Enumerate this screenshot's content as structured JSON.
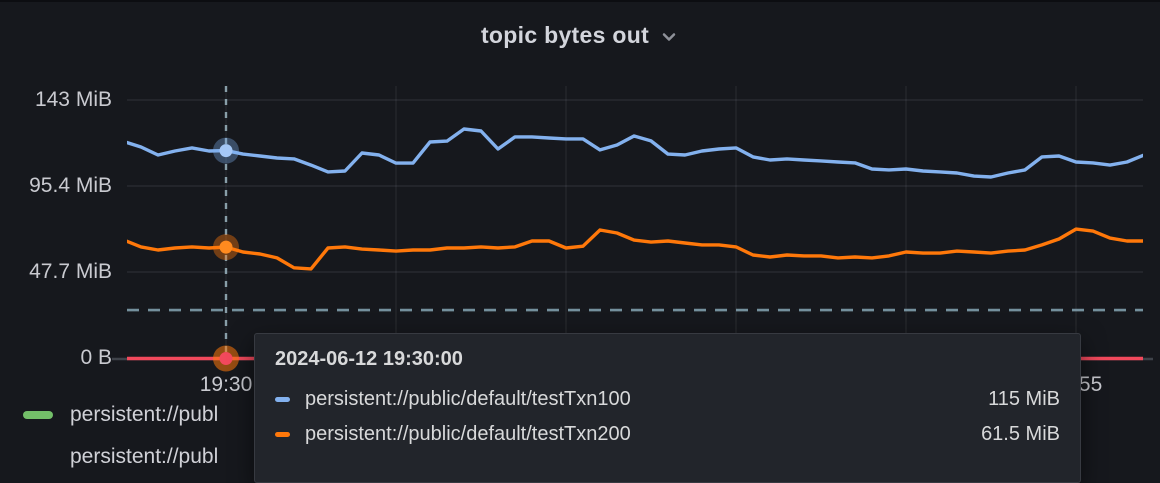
{
  "panel": {
    "title": "topic bytes out"
  },
  "colors": {
    "background": "#16181d",
    "tooltip_background": "#22252b",
    "blue": "#83B1EE",
    "orange": "#FF780A",
    "red": "#F2495C",
    "green": "#73BF69",
    "threshold": "#7F9DAB",
    "crosshair": "#9AB4C0",
    "axis_text": "#C9CAD0"
  },
  "y_axis": {
    "ticks": [
      {
        "label": "0 B",
        "value_mib": 0
      },
      {
        "label": "47.7 MiB",
        "value_mib": 47.68
      },
      {
        "label": "95.4 MiB",
        "value_mib": 95.37
      },
      {
        "label": "143 MiB",
        "value_mib": 143.05
      }
    ]
  },
  "x_axis": {
    "visible_ticks": [
      {
        "label": "19:30",
        "minutes": 0
      },
      {
        "label": "19:55",
        "minutes": 25
      }
    ]
  },
  "chart_data": {
    "type": "line",
    "title": "topic bytes out",
    "unit": "MiB",
    "x_start": "19:27:00",
    "x_step_seconds": 30,
    "x_range": [
      "19:27:00",
      "19:57:00"
    ],
    "ylim_mib": [
      0,
      143.05
    ],
    "grid": true,
    "legend_position": "bottom",
    "series": [
      {
        "name": "persistent://public/default/testTxn100",
        "color": "#83B1EE",
        "values": [
          120.0,
          117.0,
          112.6,
          114.8,
          116.5,
          114.8,
          115.0,
          113.1,
          112.0,
          110.9,
          110.4,
          107.0,
          103.2,
          103.7,
          113.7,
          112.6,
          108.1,
          108.1,
          119.8,
          120.3,
          127.0,
          125.9,
          115.9,
          122.6,
          122.6,
          122.0,
          121.5,
          121.5,
          115.4,
          118.1,
          123.1,
          120.4,
          113.1,
          112.6,
          114.8,
          115.9,
          116.5,
          111.5,
          109.8,
          110.4,
          109.8,
          109.3,
          108.7,
          108.2,
          104.8,
          104.3,
          104.8,
          103.7,
          103.2,
          102.6,
          100.9,
          100.4,
          102.6,
          104.3,
          111.5,
          112.0,
          108.7,
          108.2,
          107.0,
          108.7,
          112.6
        ]
      },
      {
        "name": "persistent://public/default/testTxn200",
        "color": "#FF780A",
        "values": [
          65.4,
          61.6,
          59.9,
          61.0,
          61.6,
          61.0,
          61.5,
          58.8,
          57.7,
          55.5,
          50.0,
          49.4,
          61.0,
          61.6,
          60.4,
          59.9,
          59.3,
          59.9,
          59.9,
          61.0,
          61.0,
          61.6,
          61.0,
          61.6,
          64.9,
          64.9,
          61.0,
          62.0,
          71.0,
          69.3,
          65.4,
          64.3,
          64.9,
          63.8,
          62.7,
          62.7,
          61.6,
          57.1,
          56.0,
          57.1,
          56.6,
          56.6,
          55.5,
          56.0,
          55.5,
          56.6,
          58.8,
          58.2,
          58.2,
          59.3,
          58.8,
          58.2,
          59.3,
          59.9,
          62.7,
          66.0,
          71.5,
          70.4,
          66.5,
          64.9,
          64.9
        ]
      },
      {
        "name": "",
        "color": "#F2495C",
        "values": [
          0,
          0,
          0,
          0,
          0,
          0,
          0,
          0,
          0,
          0,
          0,
          0,
          0,
          0,
          0,
          0,
          0,
          0,
          0,
          0,
          0,
          0,
          0,
          0,
          0,
          0,
          0,
          0,
          0,
          0,
          0,
          0,
          0,
          0,
          0,
          0,
          0,
          0,
          0,
          0,
          0,
          0,
          0,
          0,
          0,
          0,
          0,
          0,
          0,
          0,
          0,
          0,
          0,
          0,
          0,
          0,
          0,
          0,
          0,
          0,
          0
        ]
      }
    ],
    "threshold_line": {
      "value_mib": 26.6,
      "style": "dashed",
      "color": "#7F9DAB"
    },
    "crosshair": {
      "time": "2024-06-12 19:30:00",
      "minutes": 0,
      "points": [
        {
          "series": 0,
          "value_mib": 115
        },
        {
          "series": 1,
          "value_mib": 61.5
        },
        {
          "series": 2,
          "value_mib": 0
        }
      ]
    }
  },
  "tooltip": {
    "timestamp": "2024-06-12 19:30:00",
    "rows": [
      {
        "label": "persistent://public/default/testTxn100",
        "value": "115 MiB",
        "color": "#83B1EE"
      },
      {
        "label": "persistent://public/default/testTxn200",
        "value": "61.5 MiB",
        "color": "#FF780A"
      }
    ]
  },
  "legend": {
    "items": [
      {
        "label": "persistent://publ",
        "color": "#73BF69"
      },
      {
        "label": "persistent://publ",
        "color": ""
      }
    ]
  }
}
